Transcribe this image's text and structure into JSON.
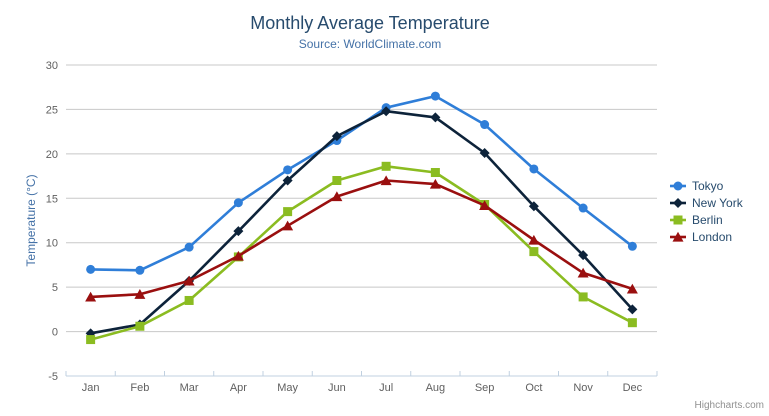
{
  "header": {
    "title": "Monthly Average Temperature",
    "subtitle": "Source: WorldClimate.com"
  },
  "icons": {
    "menu": "hamburger-icon"
  },
  "credits": {
    "label": "Highcharts.com"
  },
  "theme": {
    "title_color": "#274b6d",
    "subtitle_color": "#4572a7",
    "axis_label_color": "#606060",
    "axis_title_color": "#4572a7",
    "grid_color": "#c8c8c8",
    "axis_line_color": "#c0d0e0",
    "legend_text_color": "#274b6d",
    "credits_color": "#909090",
    "menu_icon_color": "#666666"
  },
  "chart_data": {
    "type": "line",
    "title": "Monthly Average Temperature",
    "subtitle": "Source: WorldClimate.com",
    "categories": [
      "Jan",
      "Feb",
      "Mar",
      "Apr",
      "May",
      "Jun",
      "Jul",
      "Aug",
      "Sep",
      "Oct",
      "Nov",
      "Dec"
    ],
    "xlabel": "",
    "ylabel": "Temperature (°C)",
    "ylim": [
      -5,
      30
    ],
    "yticks": [
      -5,
      0,
      5,
      10,
      15,
      20,
      25,
      30
    ],
    "grid": true,
    "legend_position": "right",
    "series": [
      {
        "name": "Tokyo",
        "color": "#2f7ed8",
        "marker": "circle",
        "values": [
          7.0,
          6.9,
          9.5,
          14.5,
          18.2,
          21.5,
          25.2,
          26.5,
          23.3,
          18.3,
          13.9,
          9.6
        ]
      },
      {
        "name": "New York",
        "color": "#0d233a",
        "marker": "diamond",
        "values": [
          -0.2,
          0.8,
          5.7,
          11.3,
          17.0,
          22.0,
          24.8,
          24.1,
          20.1,
          14.1,
          8.6,
          2.5
        ]
      },
      {
        "name": "Berlin",
        "color": "#8bbc21",
        "marker": "square",
        "values": [
          -0.9,
          0.6,
          3.5,
          8.4,
          13.5,
          17.0,
          18.6,
          17.9,
          14.3,
          9.0,
          3.9,
          1.0
        ]
      },
      {
        "name": "London",
        "color": "#9a0f0f",
        "marker": "triangle",
        "values": [
          3.9,
          4.2,
          5.7,
          8.5,
          11.9,
          15.2,
          17.0,
          16.6,
          14.2,
          10.3,
          6.6,
          4.8
        ]
      }
    ]
  }
}
